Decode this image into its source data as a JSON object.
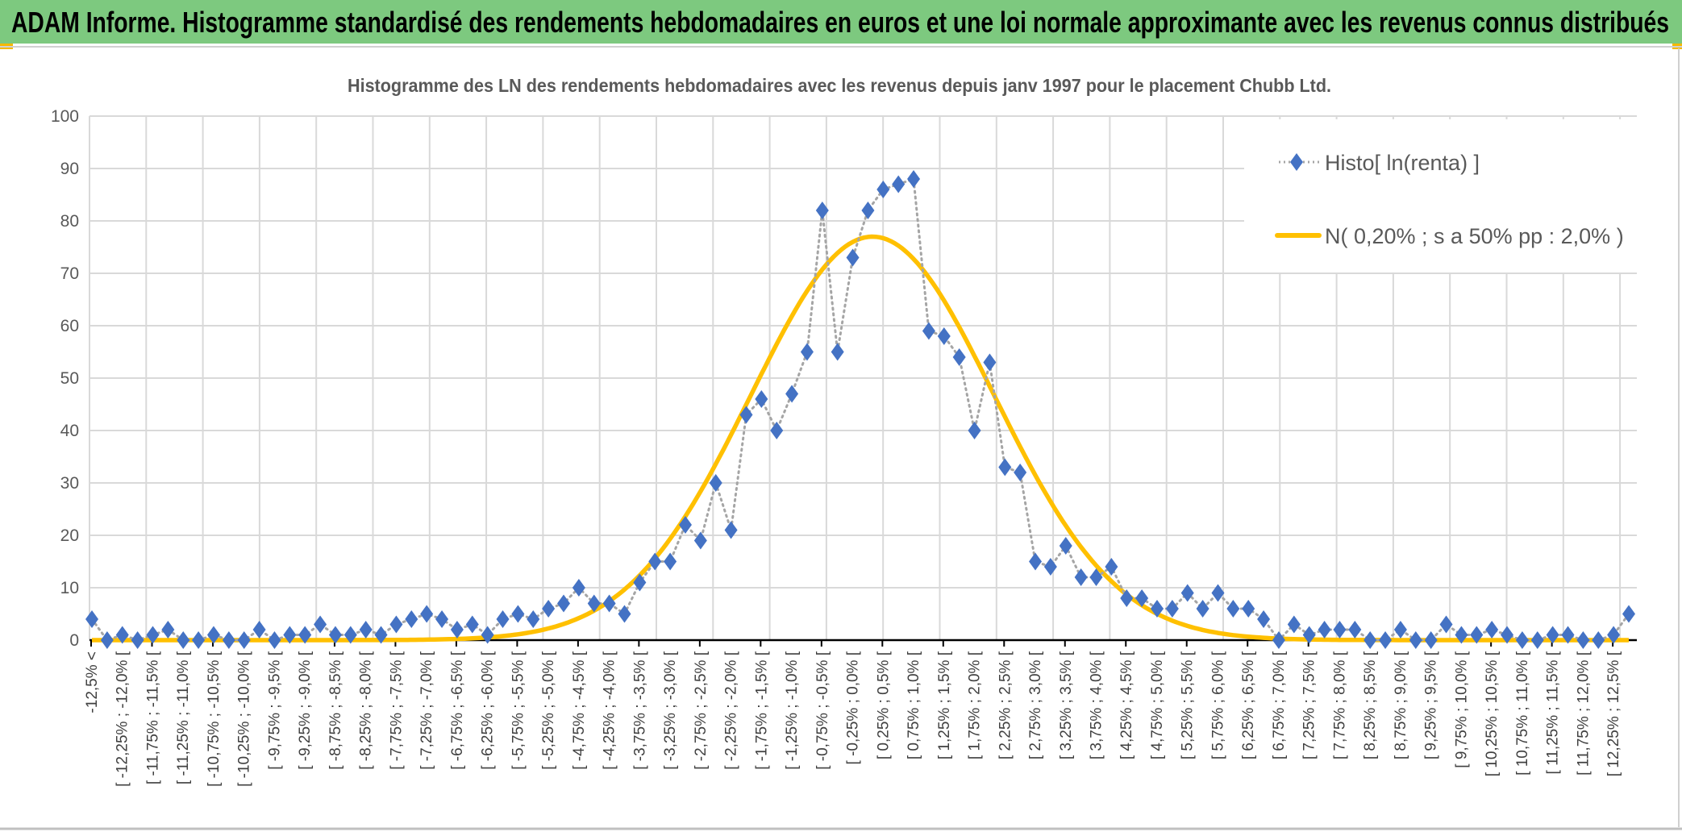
{
  "banner": {
    "title": "ADAM Informe. Histogramme standardisé des rendements hebdomadaires en euros et une loi normale approximante avec les revenus connus distribués"
  },
  "colors": {
    "banner": "#7DC97F",
    "accent_orange": "#F5B800",
    "histo": "#4472C4",
    "histo_line": "#A5A5A5",
    "normal": "#FFC000",
    "grid": "#D9D9D9"
  },
  "chart_data": {
    "type": "line",
    "title": "Histogramme des LN des rendements hebdomadaires avec les revenus depuis janv 1997 pour le placement Chubb Ltd.",
    "xlabel": "",
    "ylabel": "",
    "ylim": [
      0,
      100
    ],
    "yticks": [
      "0",
      "10",
      "20",
      "30",
      "40",
      "50",
      "60",
      "70",
      "80",
      "90",
      "100"
    ],
    "grid": true,
    "legend_position": "top-right",
    "x_tick_labels": [
      "-12,5% <",
      "[ -12,25% ; -12,0% [",
      "[ -11,75% ; -11,5% [",
      "[ -11,25% ; -11,0% [",
      "[ -10,75% ; -10,5% [",
      "[ -10,25% ; -10,0% [",
      "[ -9,75% ; -9,5% [",
      "[ -9,25% ; -9,0% [",
      "[ -8,75% ; -8,5% [",
      "[ -8,25% ; -8,0% [",
      "[ -7,75% ; -7,5% [",
      "[ -7,25% ; -7,0% [",
      "[ -6,75% ; -6,5% [",
      "[ -6,25% ; -6,0% [",
      "[ -5,75% ; -5,5% [",
      "[ -5,25% ; -5,0% [",
      "[ -4,75% ; -4,5% [",
      "[ -4,25% ; -4,0% [",
      "[ -3,75% ; -3,5% [",
      "[ -3,25% ; -3,0% [",
      "[ -2,75% ; -2,5% [",
      "[ -2,25% ; -2,0% [",
      "[ -1,75% ; -1,5% [",
      "[ -1,25% ; -1,0% [",
      "[ -0,75% ; -0,5% [",
      "[ -0,25% ; 0,0% [",
      "[ 0,25% ; 0,5% [",
      "[ 0,75% ; 1,0% [",
      "[ 1,25% ; 1,5% [",
      "[ 1,75% ; 2,0% [",
      "[ 2,25% ; 2,5% [",
      "[ 2,75% ; 3,0% [",
      "[ 3,25% ; 3,5% [",
      "[ 3,75% ; 4,0% [",
      "[ 4,25% ; 4,5% [",
      "[ 4,75% ; 5,0% [",
      "[ 5,25% ; 5,5% [",
      "[ 5,75% ; 6,0% [",
      "[ 6,25% ; 6,5% [",
      "[ 6,75% ; 7,0% [",
      "[ 7,25% ; 7,5% [",
      "[ 7,75% ; 8,0% [",
      "[ 8,25% ; 8,5% [",
      "[ 8,75% ; 9,0% [",
      "[ 9,25% ; 9,5% [",
      "[ 9,75% ; 10,0% [",
      "[ 10,25% ; 10,5% [",
      "[ 10,75% ; 11,0% [",
      "[ 11,25% ; 11,5% [",
      "[ 11,75% ; 12,0% [",
      "[ 12,25% ; 12,5% ["
    ],
    "bin_width_pct": 0.25,
    "first_bin_lower_pct": -12.5,
    "series": [
      {
        "name": "Histo[ ln(renta) ]",
        "marker": "diamond",
        "line": "dotted",
        "values": [
          4,
          0,
          1,
          0,
          1,
          2,
          0,
          0,
          1,
          0,
          0,
          2,
          0,
          1,
          1,
          3,
          1,
          1,
          2,
          1,
          3,
          4,
          5,
          4,
          2,
          3,
          1,
          4,
          5,
          4,
          6,
          7,
          10,
          7,
          7,
          5,
          11,
          15,
          15,
          22,
          19,
          30,
          21,
          43,
          46,
          40,
          47,
          55,
          82,
          55,
          73,
          82,
          86,
          87,
          88,
          59,
          58,
          54,
          40,
          53,
          33,
          32,
          15,
          14,
          18,
          12,
          12,
          14,
          8,
          8,
          6,
          6,
          9,
          6,
          9,
          6,
          6,
          4,
          0,
          3,
          1,
          2,
          2,
          2,
          0,
          0,
          2,
          0,
          0,
          3,
          1,
          1,
          2,
          1,
          0,
          0,
          1,
          1,
          0,
          0,
          1,
          5
        ]
      },
      {
        "name": "N( 0,20% ; s a 50% pp : 2,0% )",
        "type": "normal_curve",
        "mean_pct": 0.2,
        "sd_pct": 2.0,
        "peak_value": 77
      }
    ]
  }
}
